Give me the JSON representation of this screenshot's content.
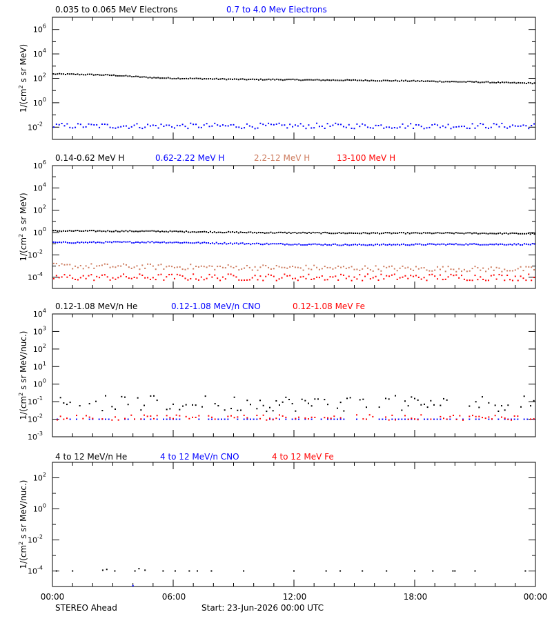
{
  "colors": {
    "black": "#000000",
    "blue": "#0000ff",
    "salmon": "#cd7a5c",
    "red": "#ff0000"
  },
  "chart_data": [
    {
      "type": "scatter",
      "ylabel_parts": [
        "1/(cm",
        "2",
        " s sr MeV)"
      ],
      "ylim_log10": [
        -3,
        7
      ],
      "yticks": [
        -2,
        0,
        2,
        4,
        6
      ],
      "ytick_format": "pow10",
      "legend": [
        {
          "text": "0.035 to 0.065 MeV Electrons",
          "color": "#000000"
        },
        {
          "text": "0.7 to 4.0 Mev Electrons",
          "color": "#0000ff"
        }
      ],
      "series": [
        {
          "name": "0.035 to 0.065 MeV Electrons",
          "color": "#000000",
          "points_log10": [
            [
              0,
              2.35
            ],
            [
              1,
              2.33
            ],
            [
              2,
              2.3
            ],
            [
              3,
              2.25
            ],
            [
              4,
              2.15
            ],
            [
              5,
              2.05
            ],
            [
              6,
              2.0
            ],
            [
              7,
              1.98
            ],
            [
              8,
              1.95
            ],
            [
              9,
              1.92
            ],
            [
              10,
              1.9
            ],
            [
              11,
              1.9
            ],
            [
              12,
              1.88
            ],
            [
              13,
              1.86
            ],
            [
              14,
              1.85
            ],
            [
              15,
              1.84
            ],
            [
              16,
              1.82
            ],
            [
              17,
              1.8
            ],
            [
              18,
              1.78
            ],
            [
              19,
              1.75
            ],
            [
              20,
              1.72
            ],
            [
              21,
              1.7
            ],
            [
              22,
              1.66
            ],
            [
              23,
              1.62
            ],
            [
              24,
              1.6
            ]
          ],
          "noise": 0.04,
          "mode": "dense"
        },
        {
          "name": "0.7 to 4.0 Mev Electrons",
          "color": "#0000ff",
          "points_log10": [
            [
              0,
              -1.9
            ],
            [
              24,
              -1.9
            ]
          ],
          "noise": 0.22,
          "mode": "scatter"
        }
      ]
    },
    {
      "type": "scatter",
      "ylabel_parts": [
        "1/(cm",
        "2",
        " s sr MeV)"
      ],
      "ylim_log10": [
        -5,
        6
      ],
      "yticks": [
        -4,
        -2,
        0,
        2,
        4,
        6
      ],
      "ytick_format": "pow10",
      "legend": [
        {
          "text": "0.14-0.62 MeV H",
          "color": "#000000"
        },
        {
          "text": "0.62-2.22 MeV H",
          "color": "#0000ff"
        },
        {
          "text": "2.2-12 MeV H",
          "color": "#cd7a5c"
        },
        {
          "text": "13-100 MeV H",
          "color": "#ff0000"
        }
      ],
      "series": [
        {
          "name": "0.14-0.62 MeV H",
          "color": "#000000",
          "points_log10": [
            [
              0,
              0.15
            ],
            [
              5,
              0.12
            ],
            [
              10,
              0.0
            ],
            [
              15,
              -0.05
            ],
            [
              20,
              -0.05
            ],
            [
              24,
              -0.1
            ]
          ],
          "noise": 0.05,
          "mode": "dense"
        },
        {
          "name": "0.62-2.22 MeV H",
          "color": "#0000ff",
          "points_log10": [
            [
              0,
              -0.9
            ],
            [
              5,
              -0.85
            ],
            [
              10,
              -1.0
            ],
            [
              15,
              -1.1
            ],
            [
              20,
              -1.05
            ],
            [
              24,
              -1.05
            ]
          ],
          "noise": 0.06,
          "mode": "dense"
        },
        {
          "name": "2.2-12 MeV H",
          "color": "#cd7a5c",
          "points_log10": [
            [
              0,
              -3.0
            ],
            [
              24,
              -3.3
            ]
          ],
          "noise": 0.25,
          "mode": "scatter"
        },
        {
          "name": "13-100 MeV H",
          "color": "#ff0000",
          "points_log10": [
            [
              0,
              -4.0
            ],
            [
              24,
              -4.0
            ]
          ],
          "noise": 0.3,
          "mode": "scatter"
        }
      ]
    },
    {
      "type": "scatter",
      "ylabel_parts": [
        "1/(cm",
        "2",
        " s sr MeV/nuc.)"
      ],
      "ylim_log10": [
        -3,
        4
      ],
      "yticks": [
        -3,
        -2,
        -1,
        0,
        1,
        2,
        3,
        4
      ],
      "ytick_format": "pow10",
      "legend": [
        {
          "text": "0.12-1.08 MeV/n He",
          "color": "#000000"
        },
        {
          "text": "0.12-1.08 MeV/n CNO",
          "color": "#0000ff"
        },
        {
          "text": "0.12-1.08 MeV Fe",
          "color": "#ff0000"
        }
      ],
      "series": [
        {
          "name": "0.12-1.08 MeV/n He",
          "color": "#000000",
          "points_log10": [
            [
              0,
              -1.1
            ],
            [
              24,
              -1.1
            ]
          ],
          "noise": 0.45,
          "mode": "sparse"
        },
        {
          "name": "0.12-1.08 MeV/n CNO",
          "color": "#0000ff",
          "points_log10": [
            [
              0,
              -2.0
            ],
            [
              24,
              -2.0
            ]
          ],
          "noise": 0.0,
          "mode": "sparse"
        },
        {
          "name": "0.12-1.08 MeV Fe",
          "color": "#ff0000",
          "points_log10": [
            [
              0,
              -1.9
            ],
            [
              24,
              -1.9
            ]
          ],
          "noise": 0.15,
          "mode": "sparse"
        }
      ]
    },
    {
      "type": "scatter",
      "ylabel_parts": [
        "1/(cm",
        "2",
        " s sr MeV/nuc.)"
      ],
      "ylim_log10": [
        -5,
        3
      ],
      "yticks": [
        -4,
        -2,
        0,
        2
      ],
      "ytick_format": "pow10",
      "legend": [
        {
          "text": "4 to 12 MeV/n He",
          "color": "#000000"
        },
        {
          "text": "4 to 12 MeV/n CNO",
          "color": "#0000ff"
        },
        {
          "text": "4 to 12 MeV Fe",
          "color": "#ff0000"
        }
      ],
      "series": [
        {
          "name": "4 to 12 MeV/n He",
          "color": "#000000",
          "points_log10": [
            [
              0.2,
              -4.0
            ],
            [
              1.0,
              -4.0
            ],
            [
              2.5,
              -3.95
            ],
            [
              2.7,
              -3.9
            ],
            [
              3.1,
              -4.0
            ],
            [
              4.1,
              -4.0
            ],
            [
              4.3,
              -3.85
            ],
            [
              4.6,
              -3.95
            ],
            [
              5.5,
              -4.0
            ],
            [
              6.1,
              -4.0
            ],
            [
              6.8,
              -4.0
            ],
            [
              7.2,
              -4.0
            ],
            [
              7.9,
              -4.0
            ],
            [
              9.5,
              -4.0
            ],
            [
              12.0,
              -4.0
            ],
            [
              13.6,
              -4.0
            ],
            [
              14.3,
              -4.0
            ],
            [
              15.4,
              -4.0
            ],
            [
              16.6,
              -4.0
            ],
            [
              18.0,
              -4.0
            ],
            [
              18.9,
              -4.0
            ],
            [
              19.9,
              -4.0
            ],
            [
              20.0,
              -4.0
            ],
            [
              21.0,
              -4.0
            ],
            [
              23.5,
              -4.0
            ]
          ],
          "noise": 0.0,
          "mode": "list"
        },
        {
          "name": "4 to 12 MeV/n CNO",
          "color": "#0000ff",
          "points_log10": [
            [
              4.0,
              -4.95
            ]
          ],
          "noise": 0.0,
          "mode": "list"
        },
        {
          "name": "4 to 12 MeV Fe",
          "color": "#ff0000",
          "points_log10": [],
          "noise": 0.0,
          "mode": "list"
        }
      ]
    }
  ],
  "x_axis": {
    "range_hours": [
      0,
      24
    ],
    "tick_labels": [
      {
        "hour": 0,
        "label": "00:00"
      },
      {
        "hour": 6,
        "label": "06:00"
      },
      {
        "hour": 12,
        "label": "12:00"
      },
      {
        "hour": 18,
        "label": "18:00"
      },
      {
        "hour": 24,
        "label": "00:00"
      }
    ]
  },
  "footer": {
    "spacecraft": "STEREO Ahead",
    "start": "Start: 23-Jun-2026 00:00 UTC"
  }
}
